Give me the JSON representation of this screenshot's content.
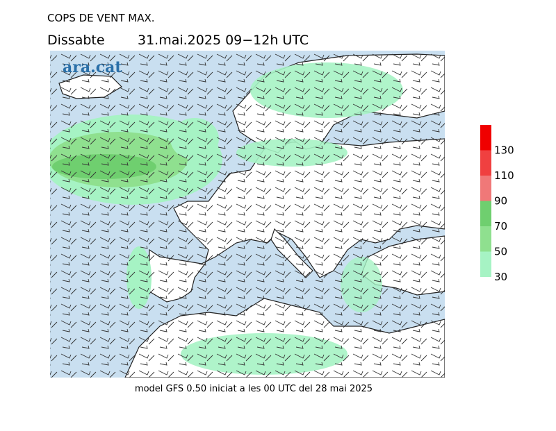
{
  "header": {
    "title": "COPS DE VENT MAX.",
    "day": "Dissabte",
    "date": "31.mai.2025 09−12h UTC"
  },
  "logo": "ara.cat",
  "footer": "model GFS 0.50 iniciat a les 00 UTC del 28 mai 2025",
  "colorbar": {
    "ticks": [
      30,
      50,
      70,
      90,
      110,
      130
    ],
    "colors": [
      "#a6f3c4",
      "#8fe08f",
      "#6fcf6f",
      "#f07878",
      "#f04040",
      "#f00000"
    ]
  }
}
